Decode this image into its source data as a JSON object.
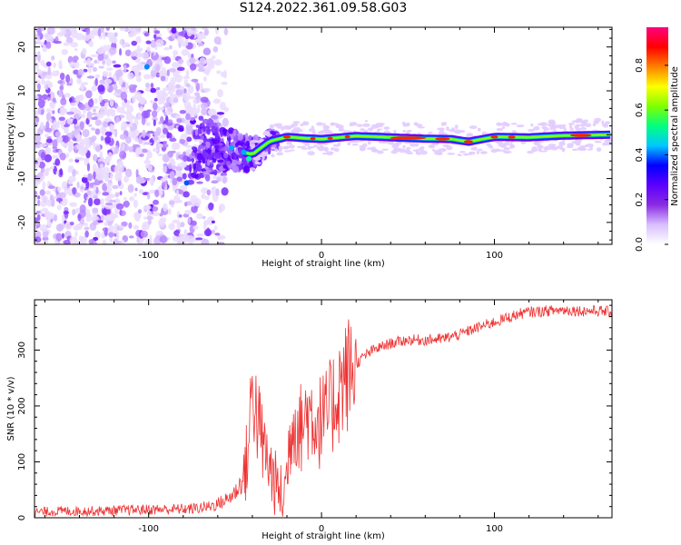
{
  "title": "S124.2022.361.09.58.G03",
  "chart_data": [
    {
      "type": "heatmap",
      "xlabel": "Height of straight line (km)",
      "ylabel": "Frequency (Hz)",
      "xlim": [
        -166,
        168
      ],
      "ylim": [
        -25,
        24.5
      ],
      "xticks": [
        -100,
        0,
        100
      ],
      "yticks": [
        -20,
        -10,
        0,
        10,
        20
      ],
      "colorbar": {
        "label": "Normalized spectral amplitude",
        "range": [
          0.0,
          0.97
        ],
        "ticks": [
          "0.0",
          "0.2",
          "0.4",
          "0.6",
          "0.8"
        ],
        "ticks_value": [
          0.0,
          0.2,
          0.4,
          0.6,
          0.8
        ],
        "colormap": [
          "#ffffff",
          "#d8bfff",
          "#8a2be2",
          "#5b00ff",
          "#0000ff",
          "#00c8ff",
          "#00ff80",
          "#80ff00",
          "#ffff00",
          "#ff8000",
          "#ff0000",
          "#ff0080"
        ]
      },
      "ridge": [
        {
          "x": -60,
          "y": -3.0
        },
        {
          "x": -50,
          "y": -3.5
        },
        {
          "x": -40,
          "y": -4.5
        },
        {
          "x": -30,
          "y": -1.5
        },
        {
          "x": -20,
          "y": -0.5
        },
        {
          "x": -10,
          "y": -0.8
        },
        {
          "x": 0,
          "y": -1.0
        },
        {
          "x": 20,
          "y": -0.3
        },
        {
          "x": 40,
          "y": -0.6
        },
        {
          "x": 60,
          "y": -0.9
        },
        {
          "x": 75,
          "y": -1.0
        },
        {
          "x": 85,
          "y": -1.6
        },
        {
          "x": 100,
          "y": -0.5
        },
        {
          "x": 120,
          "y": -0.6
        },
        {
          "x": 140,
          "y": -0.2
        },
        {
          "x": 168,
          "y": 0.0
        }
      ]
    },
    {
      "type": "line",
      "xlabel": "Height of straight line (km)",
      "ylabel": "SNR (10 * v/v)",
      "xlim": [
        -166,
        168
      ],
      "ylim": [
        0,
        390
      ],
      "xticks": [
        -100,
        0,
        100
      ],
      "yticks": [
        0,
        100,
        200,
        300
      ],
      "color": "#ee3333",
      "series": [
        {
          "x": [
            -166,
            -150,
            -130,
            -110,
            -90,
            -75,
            -65,
            -60,
            -55,
            -50,
            -45,
            -42,
            -40,
            -38,
            -36,
            -34,
            -32,
            -30,
            -28,
            -25,
            -22,
            -20,
            -18,
            -16,
            -14,
            -12,
            -10,
            -8,
            -6,
            -4,
            -2,
            0,
            2,
            4,
            6,
            8,
            10,
            12,
            14,
            16,
            20,
            25,
            30,
            40,
            50,
            60,
            70,
            80,
            90,
            100,
            105,
            110,
            115,
            120,
            130,
            140,
            150,
            160,
            168
          ],
          "y": [
            10,
            12,
            12,
            14,
            15,
            16,
            20,
            25,
            32,
            45,
            70,
            130,
            250,
            190,
            160,
            130,
            110,
            90,
            70,
            50,
            35,
            80,
            150,
            180,
            170,
            160,
            175,
            190,
            185,
            180,
            170,
            175,
            175,
            185,
            200,
            215,
            230,
            245,
            250,
            260,
            275,
            290,
            300,
            312,
            318,
            318,
            320,
            328,
            340,
            350,
            355,
            360,
            365,
            368,
            370,
            372,
            370,
            370,
            368
          ]
        }
      ]
    }
  ]
}
